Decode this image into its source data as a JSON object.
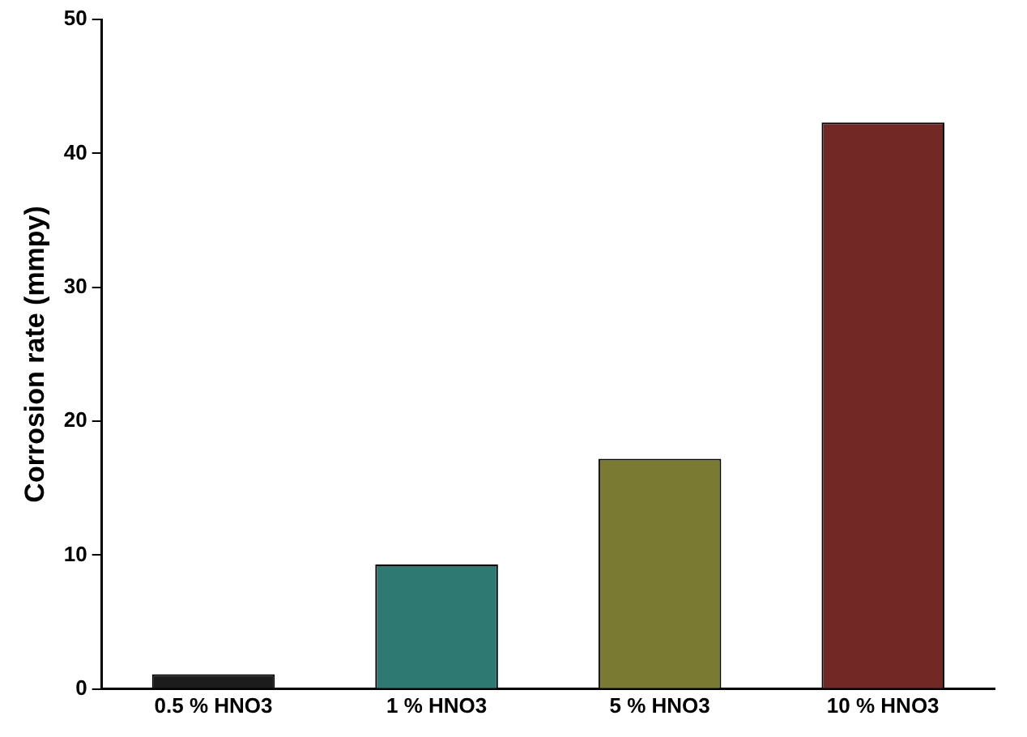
{
  "chart_data": {
    "type": "bar",
    "ylabel": "Corrosion rate (mmpy)",
    "categories": [
      "0.5 % HNO3",
      "1 % HNO3",
      "5 % HNO3",
      "10 % HNO3"
    ],
    "values": [
      1.1,
      9.3,
      17.2,
      42.3
    ],
    "colors": [
      "#1c1c1c",
      "#2e7a73",
      "#7a7a33",
      "#722825"
    ],
    "ylim": [
      0,
      50
    ],
    "yticks": [
      0,
      10,
      20,
      30,
      40,
      50
    ],
    "grid": false,
    "legend": false
  }
}
